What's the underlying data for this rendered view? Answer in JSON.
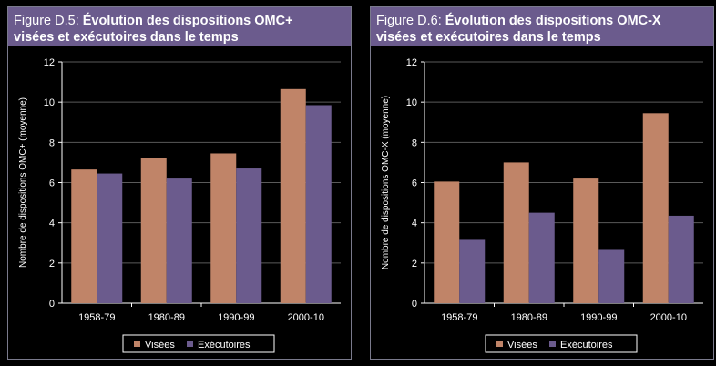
{
  "colors": {
    "visees": "#c08468",
    "executoires": "#6b5b8d",
    "title_bg": "#6b5b8d",
    "axis": "#ffffff",
    "grid": "#5a5a5a"
  },
  "chart_data": [
    {
      "type": "bar",
      "title_num": "Figure D.5: ",
      "title_line1": "Évolution des dispositions OMC+",
      "title_line2": "visées et exécutoires dans le temps",
      "ylabel": "Nombre de dispositions OMC+ (moyenne)",
      "categories": [
        "1958-79",
        "1980-89",
        "1990-99",
        "2000-10"
      ],
      "ylim": [
        0,
        12
      ],
      "yticks": [
        "0",
        "2",
        "4",
        "6",
        "8",
        "10",
        "12"
      ],
      "series": [
        {
          "name": "Visées",
          "values": [
            6.65,
            7.2,
            7.45,
            10.65
          ]
        },
        {
          "name": "Exécutoires",
          "values": [
            6.45,
            6.2,
            6.7,
            9.85
          ]
        }
      ],
      "legend_placement": "bottom-center",
      "grid": true
    },
    {
      "type": "bar",
      "title_num": "Figure D.6: ",
      "title_line1": "Évolution des dispositions OMC-X",
      "title_line2": "visées et exécutoires dans le temps",
      "ylabel": "Nombre de dispositions OMC-X (moyenne)",
      "categories": [
        "1958-79",
        "1980-89",
        "1990-99",
        "2000-10"
      ],
      "ylim": [
        0,
        12
      ],
      "yticks": [
        "0",
        "2",
        "4",
        "6",
        "8",
        "10",
        "12"
      ],
      "series": [
        {
          "name": "Visées",
          "values": [
            6.05,
            7.0,
            6.2,
            9.45
          ]
        },
        {
          "name": "Exécutoires",
          "values": [
            3.15,
            4.5,
            2.65,
            4.35
          ]
        }
      ],
      "legend_placement": "bottom-center",
      "grid": true
    }
  ]
}
